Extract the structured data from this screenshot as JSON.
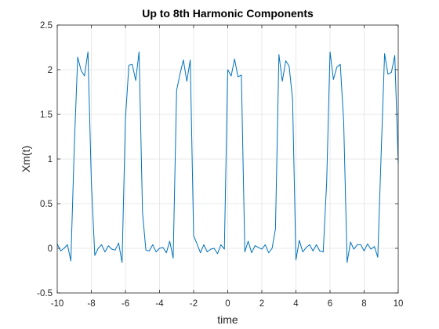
{
  "chart_data": {
    "type": "line",
    "title": "Up to 8th Harmonic Components",
    "xlabel": "time",
    "ylabel": "Xm(t)",
    "xlim": [
      -10,
      10
    ],
    "ylim": [
      -0.5,
      2.5
    ],
    "grid": true,
    "xticks": [
      "-10",
      "-8",
      "-6",
      "-4",
      "-2",
      "0",
      "2",
      "4",
      "6",
      "8",
      "10"
    ],
    "yticks": [
      "-0.5",
      "0",
      "0.5",
      "1",
      "1.5",
      "2",
      "2.5"
    ],
    "line_color": "#0072BD",
    "series": [
      {
        "x": [
          -10.0,
          -9.8,
          -9.6,
          -9.4,
          -9.2,
          -9.0,
          -8.8,
          -8.6,
          -8.4,
          -8.2,
          -8.0,
          -7.8,
          -7.6,
          -7.4,
          -7.2,
          -7.0,
          -6.8,
          -6.6,
          -6.4,
          -6.2,
          -6.0,
          -5.8,
          -5.6,
          -5.4,
          -5.2,
          -5.0,
          -4.8,
          -4.6,
          -4.4,
          -4.2,
          -4.0,
          -3.8,
          -3.6,
          -3.4,
          -3.2,
          -3.0,
          -2.8,
          -2.6,
          -2.4,
          -2.2,
          -2.0,
          -1.8,
          -1.6,
          -1.4,
          -1.2,
          -1.0,
          -0.8,
          -0.6,
          -0.4,
          -0.2,
          0.0,
          0.2,
          0.4,
          0.6,
          0.8,
          1.0,
          1.2,
          1.4,
          1.6,
          1.8,
          2.0,
          2.2,
          2.4,
          2.6,
          2.8,
          3.0,
          3.2,
          3.4,
          3.6,
          3.8,
          4.0,
          4.2,
          4.4,
          4.6,
          4.8,
          5.0,
          5.2,
          5.4,
          5.6,
          5.8,
          6.0,
          6.2,
          6.4,
          6.6,
          6.8,
          7.0,
          7.2,
          7.4,
          7.6,
          7.8,
          8.0,
          8.2,
          8.4,
          8.6,
          8.8,
          9.0,
          9.2,
          9.4,
          9.6,
          9.8,
          10.0
        ],
        "y": [
          0.05,
          -0.03,
          0.0,
          0.04,
          -0.14,
          1.15,
          2.14,
          1.99,
          1.93,
          2.2,
          0.75,
          -0.08,
          0.0,
          0.04,
          -0.04,
          0.03,
          -0.01,
          -0.02,
          0.06,
          -0.16,
          1.45,
          2.05,
          2.06,
          1.88,
          2.2,
          0.4,
          -0.02,
          -0.03,
          0.04,
          -0.04,
          0.0,
          0.01,
          -0.05,
          0.08,
          -0.11,
          1.77,
          1.95,
          2.11,
          1.87,
          2.11,
          0.14,
          0.05,
          -0.05,
          0.04,
          -0.04,
          -0.01,
          0.0,
          -0.06,
          0.04,
          -0.01,
          2.0,
          1.93,
          2.12,
          1.92,
          1.94,
          -0.04,
          0.08,
          -0.05,
          0.03,
          0.01,
          -0.01,
          0.04,
          -0.05,
          0.0,
          0.22,
          2.17,
          1.87,
          2.1,
          2.04,
          1.67,
          -0.13,
          0.09,
          -0.04,
          0.01,
          0.04,
          -0.03,
          0.04,
          -0.03,
          -0.04,
          0.74,
          2.2,
          1.89,
          2.03,
          2.06,
          1.42,
          -0.16,
          0.07,
          -0.01,
          0.04,
          0.04,
          -0.03,
          0.05,
          -0.01,
          0.02,
          -0.1,
          1.08,
          2.18,
          1.95,
          1.97,
          2.16,
          0.95
        ]
      }
    ]
  }
}
